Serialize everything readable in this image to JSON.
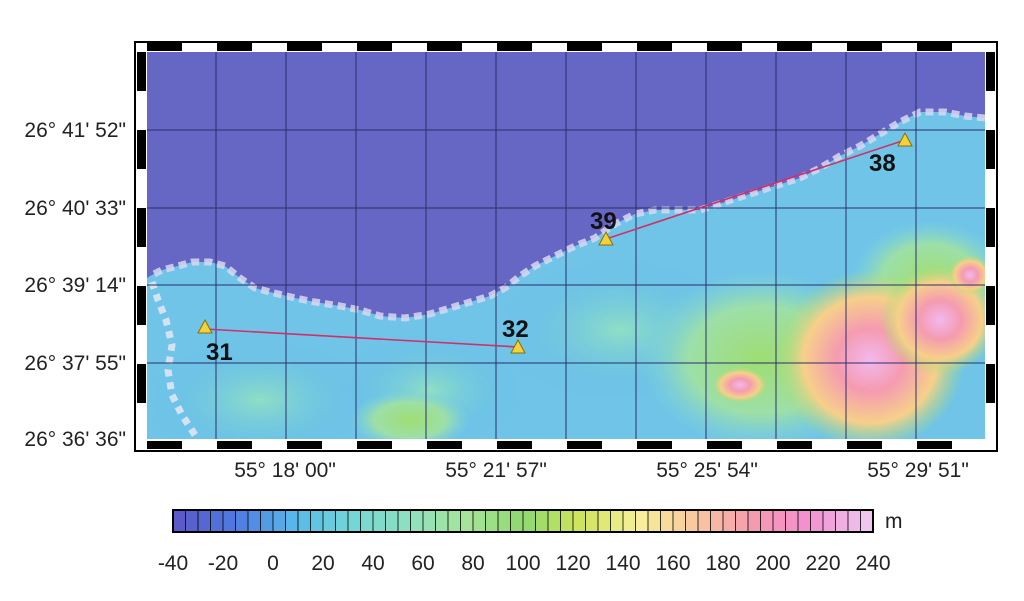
{
  "map": {
    "lat_labels": [
      "26° 41' 52\"",
      "26° 40' 33\"",
      "26° 39' 14\"",
      "26° 37' 55\"",
      "26° 36' 36\""
    ],
    "lon_labels": [
      "55° 18' 00\"",
      "55° 21' 57\"",
      "55° 25' 54\"",
      "55° 29' 51\""
    ],
    "stations": [
      {
        "id": "31",
        "name": "31"
      },
      {
        "id": "32",
        "name": "32"
      },
      {
        "id": "39",
        "name": "39"
      },
      {
        "id": "38",
        "name": "38"
      }
    ],
    "profiles": [
      {
        "from": "31",
        "to": "32"
      },
      {
        "from": "39",
        "to": "38"
      }
    ],
    "colors": {
      "sea": "#6666c4",
      "grid": "#2a2f6a",
      "profile_line": "#d0306a",
      "station_marker": "#f2d13a"
    }
  },
  "colorbar": {
    "unit": "m",
    "tick_labels": [
      "-40",
      "-20",
      "0",
      "20",
      "40",
      "60",
      "80",
      "100",
      "120",
      "140",
      "160",
      "180",
      "200",
      "220",
      "240"
    ],
    "min": -40,
    "max": 240,
    "step": 5,
    "colors": [
      "#5a5ac8",
      "#4f7be0",
      "#58b8ea",
      "#74d6d6",
      "#8ee0c0",
      "#a6e59a",
      "#8fd870",
      "#cfe45e",
      "#f7f09a",
      "#f8c8a0",
      "#f59bb0",
      "#f48fd0",
      "#eec6ee"
    ]
  }
}
